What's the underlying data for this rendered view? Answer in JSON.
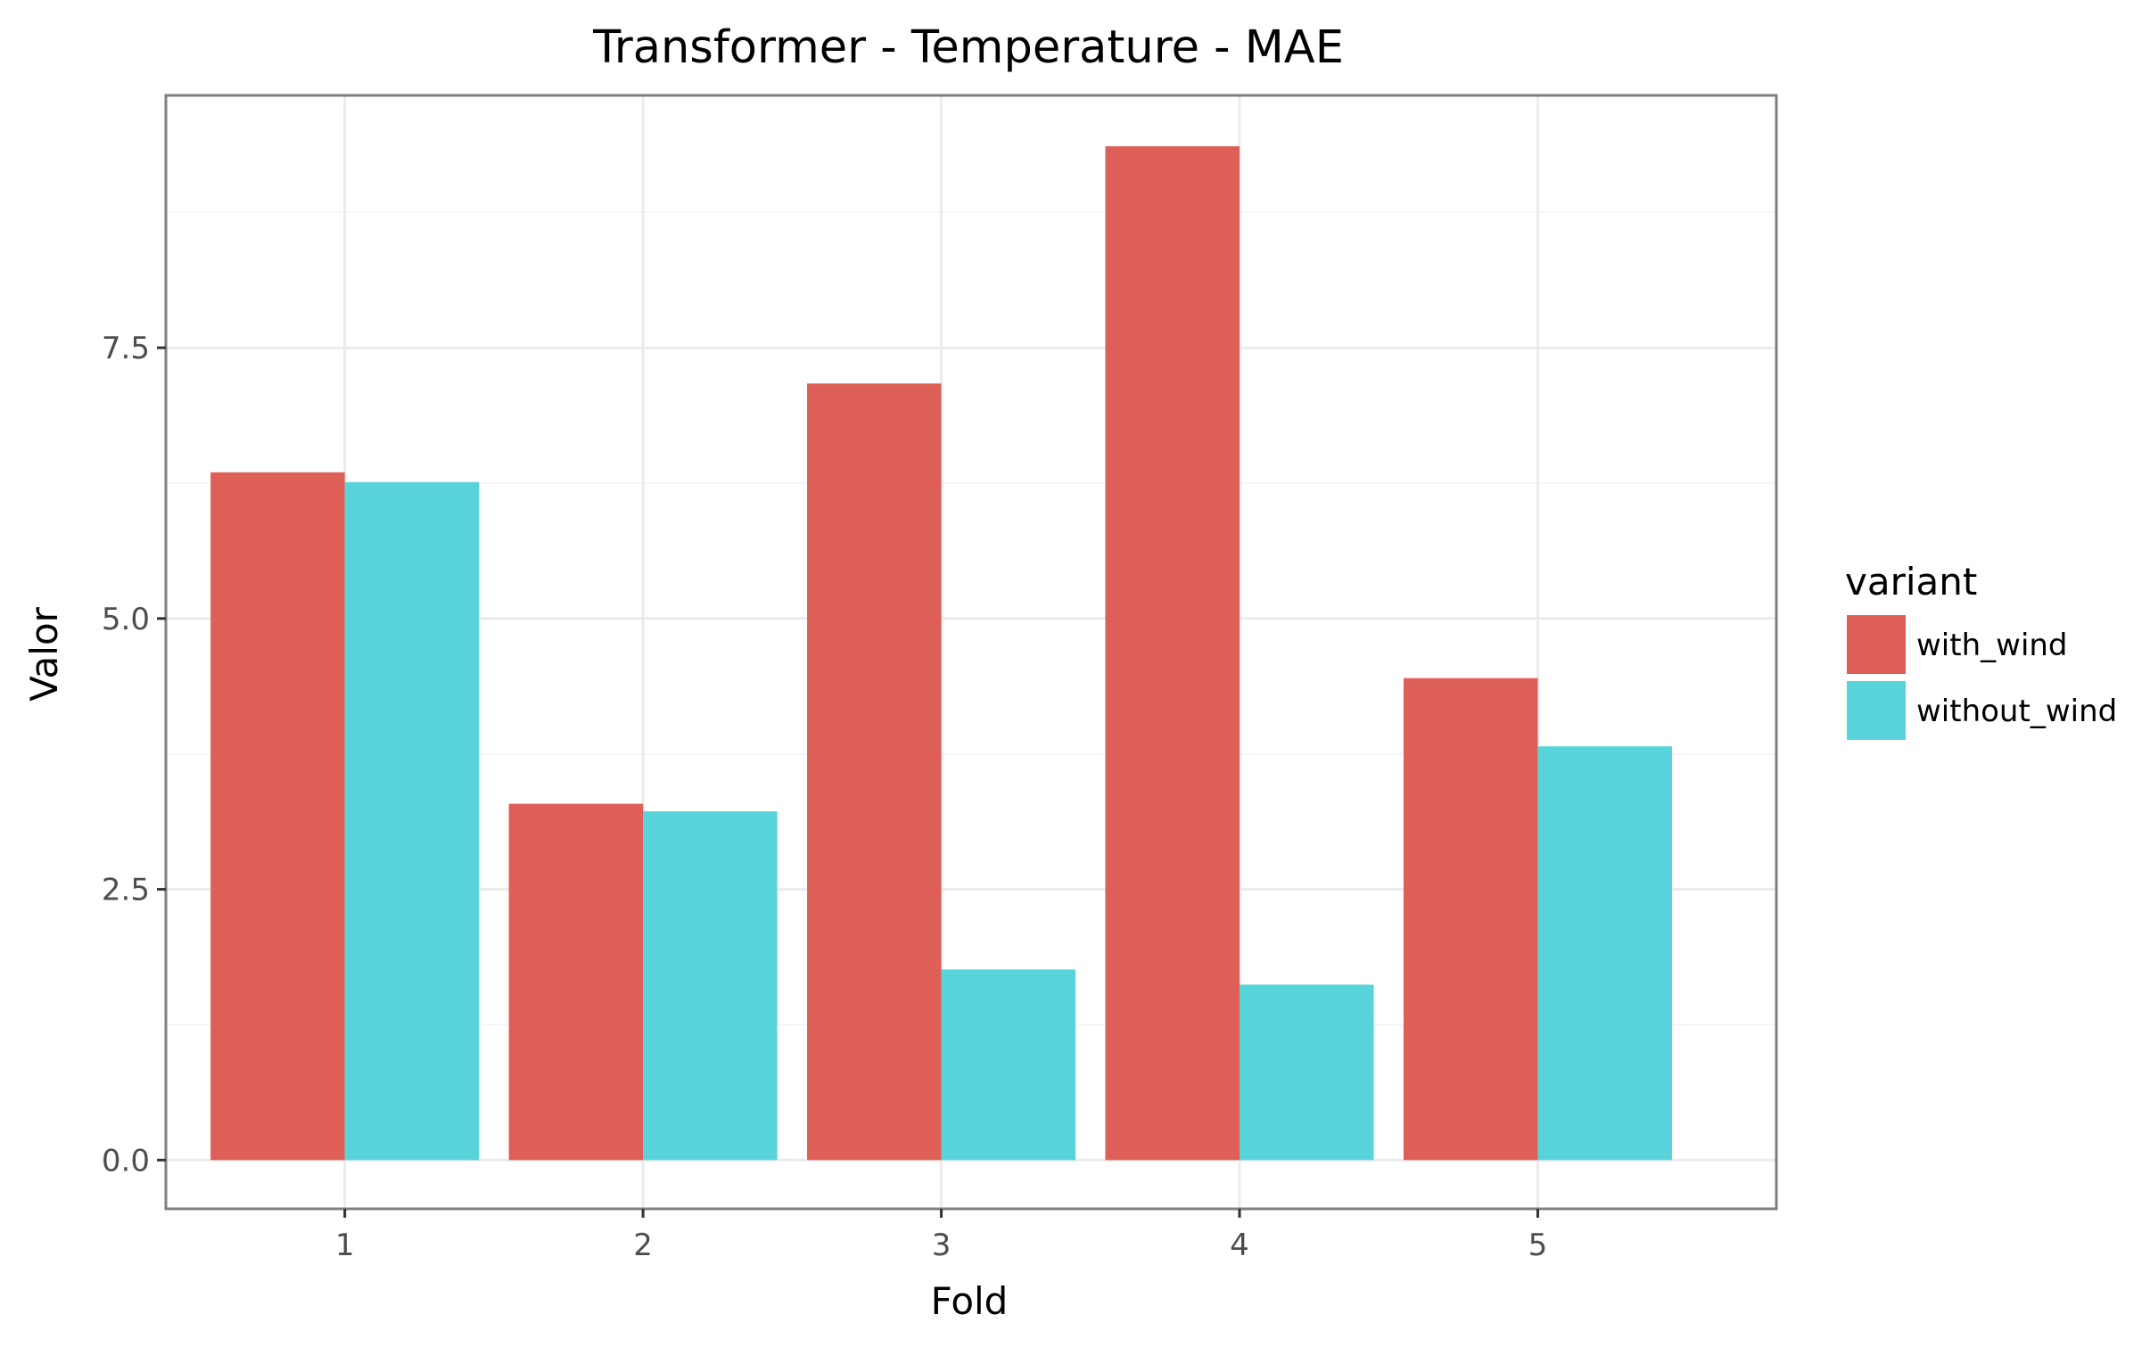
{
  "chart_data": {
    "type": "bar",
    "title": "Transformer - Temperature - MAE",
    "xlabel": "Fold",
    "ylabel": "Valor",
    "categories": [
      "1",
      "2",
      "3",
      "4",
      "5"
    ],
    "series": [
      {
        "name": "with_wind",
        "color": "#de5f57",
        "values": [
          6.35,
          3.29,
          7.17,
          9.36,
          4.45
        ]
      },
      {
        "name": "without_wind",
        "color": "#59d3da",
        "values": [
          6.26,
          3.22,
          1.76,
          1.62,
          3.82
        ]
      }
    ],
    "ylim": [
      -0.45,
      9.83
    ],
    "yticks": [
      0.0,
      2.5,
      5.0,
      7.5
    ],
    "ytick_labels": [
      "0.0",
      "2.5",
      "5.0",
      "7.5"
    ],
    "grid": true,
    "legend": {
      "title": "variant",
      "position": "right"
    }
  }
}
